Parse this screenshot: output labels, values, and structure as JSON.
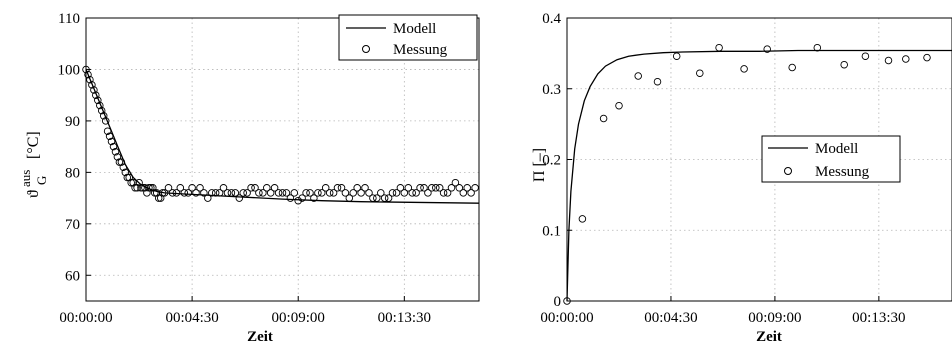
{
  "chart_data": [
    {
      "type": "line",
      "xlabel": "Zeit",
      "ylabel": {
        "main": "ϑ",
        "sub": "G",
        "sup": "aus",
        "unit": "[°C]"
      },
      "ylim": [
        55,
        110
      ],
      "xlim_seconds": [
        0,
        1000
      ],
      "yticks": [
        60,
        70,
        80,
        90,
        100,
        110
      ],
      "xticks": [
        {
          "t": 0,
          "label": "00:00:00"
        },
        {
          "t": 270,
          "label": "00:04:30"
        },
        {
          "t": 540,
          "label": "00:09:00"
        },
        {
          "t": 810,
          "label": "00:13:30"
        }
      ],
      "grid": true,
      "legend_position": "top-right",
      "legend": [
        "Modell",
        "Messung"
      ],
      "series": [
        {
          "name": "Modell",
          "style": "line",
          "x": [
            0,
            20,
            40,
            60,
            80,
            100,
            120,
            140,
            160,
            180,
            200,
            250,
            300,
            400,
            500,
            600,
            700,
            800,
            900,
            1000
          ],
          "y": [
            100,
            96.3,
            92.6,
            88.9,
            85.2,
            81.5,
            79,
            77.6,
            76.8,
            76.3,
            76,
            75.8,
            75.6,
            75.2,
            74.8,
            74.5,
            74.3,
            74.2,
            74.1,
            74
          ]
        },
        {
          "name": "Messung",
          "style": "markers",
          "x": [
            0,
            5,
            10,
            15,
            20,
            25,
            30,
            35,
            40,
            45,
            50,
            55,
            60,
            65,
            70,
            75,
            80,
            85,
            90,
            95,
            100,
            105,
            110,
            115,
            120,
            125,
            130,
            135,
            140,
            145,
            150,
            155,
            160,
            165,
            170,
            175,
            180,
            185,
            190,
            195,
            200,
            210,
            220,
            230,
            240,
            250,
            260,
            270,
            280,
            290,
            300,
            310,
            320,
            330,
            340,
            350,
            360,
            370,
            380,
            390,
            400,
            410,
            420,
            430,
            440,
            450,
            460,
            470,
            480,
            490,
            500,
            510,
            520,
            530,
            540,
            550,
            560,
            570,
            580,
            590,
            600,
            610,
            620,
            630,
            640,
            650,
            660,
            670,
            680,
            690,
            700,
            710,
            720,
            730,
            740,
            750,
            760,
            770,
            780,
            790,
            800,
            810,
            820,
            830,
            840,
            850,
            860,
            870,
            880,
            890,
            900,
            910,
            920,
            930,
            940,
            950,
            960,
            970,
            980,
            990
          ],
          "y": [
            100,
            99,
            98,
            97,
            96,
            95,
            94,
            93,
            92,
            91,
            90,
            88,
            87,
            86,
            85,
            84,
            83,
            82,
            82,
            81,
            80,
            79,
            79,
            78,
            78,
            77,
            77,
            78,
            77,
            77,
            77,
            76,
            77,
            77,
            77,
            76,
            76,
            75,
            75,
            76,
            76,
            77,
            76,
            76,
            77,
            76,
            76,
            77,
            76,
            77,
            76,
            75,
            76,
            76,
            76,
            77,
            76,
            76,
            76,
            75,
            76,
            76,
            77,
            77,
            76,
            76,
            77,
            76,
            77,
            76,
            76,
            76,
            75,
            76,
            74.5,
            75,
            76,
            76,
            75,
            76,
            76,
            77,
            76,
            76,
            77,
            77,
            76,
            75,
            76,
            77,
            76,
            77,
            76,
            75,
            75,
            76,
            75,
            75,
            76,
            76,
            77,
            76,
            77,
            76,
            76,
            77,
            77,
            76,
            77,
            77,
            77,
            76,
            76,
            77,
            78,
            77,
            76,
            77,
            76,
            77
          ]
        }
      ]
    },
    {
      "type": "line",
      "xlabel": "Zeit",
      "ylabel": "Π [–]",
      "ylim": [
        0,
        0.4
      ],
      "xlim_seconds": [
        0,
        1000
      ],
      "yticks": [
        0,
        0.1,
        0.2,
        0.3,
        0.4
      ],
      "ytick_labels": [
        "0",
        "0.1",
        "0.2",
        "0.3",
        "0.4"
      ],
      "xticks": [
        {
          "t": 0,
          "label": "00:00:00"
        },
        {
          "t": 270,
          "label": "00:04:30"
        },
        {
          "t": 540,
          "label": "00:09:00"
        },
        {
          "t": 810,
          "label": "00:13:30"
        }
      ],
      "grid": true,
      "legend_position": "center-right",
      "legend": [
        "Modell",
        "Messung"
      ],
      "series": [
        {
          "name": "Modell",
          "style": "line",
          "x": [
            0,
            5,
            10,
            20,
            30,
            45,
            60,
            80,
            100,
            130,
            160,
            200,
            250,
            300,
            400,
            500,
            600,
            700,
            800,
            900,
            1000
          ],
          "y": [
            0,
            0.1,
            0.155,
            0.215,
            0.25,
            0.283,
            0.303,
            0.321,
            0.332,
            0.341,
            0.346,
            0.349,
            0.351,
            0.352,
            0.353,
            0.353,
            0.354,
            0.354,
            0.354,
            0.354,
            0.354
          ]
        },
        {
          "name": "Messung",
          "style": "markers",
          "x": [
            0,
            40,
            95,
            135,
            185,
            235,
            285,
            345,
            395,
            460,
            520,
            585,
            650,
            720,
            775,
            835,
            880,
            935
          ],
          "y": [
            0,
            0.116,
            0.258,
            0.276,
            0.318,
            0.31,
            0.346,
            0.322,
            0.358,
            0.328,
            0.356,
            0.33,
            0.358,
            0.334,
            0.346,
            0.34,
            0.342,
            0.344
          ]
        }
      ]
    }
  ]
}
